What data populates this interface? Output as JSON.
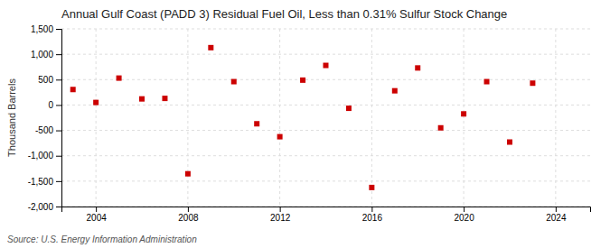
{
  "chart_data": {
    "type": "scatter",
    "title": "Annual Gulf Coast (PADD 3) Residual Fuel Oil, Less than 0.31% Sulfur Stock Change",
    "ylabel": "Thousand Barrels",
    "source": "Source: U.S. Energy Information Administration",
    "x": [
      2003,
      2004,
      2005,
      2006,
      2007,
      2008,
      2009,
      2010,
      2011,
      2012,
      2013,
      2014,
      2015,
      2016,
      2017,
      2018,
      2019,
      2020,
      2021,
      2022,
      2023
    ],
    "values": [
      305,
      50,
      530,
      120,
      130,
      -1355,
      1130,
      460,
      -370,
      -625,
      490,
      780,
      -65,
      -1625,
      280,
      730,
      -450,
      -175,
      460,
      -730,
      430
    ],
    "color": "#cc0000",
    "marker": "square",
    "xlim": [
      2002.5,
      2025.5
    ],
    "xticks": [
      2004,
      2008,
      2012,
      2016,
      2020,
      2024
    ],
    "ylim": [
      -2000,
      1500
    ],
    "yticks": [
      {
        "value": -2000,
        "label": "-2,000"
      },
      {
        "value": -1500,
        "label": "-1,500"
      },
      {
        "value": -1000,
        "label": "-1,000"
      },
      -500,
      0,
      500,
      {
        "value": 1000,
        "label": "1,000"
      },
      {
        "value": 1500,
        "label": "1,500"
      }
    ],
    "grid": true
  }
}
